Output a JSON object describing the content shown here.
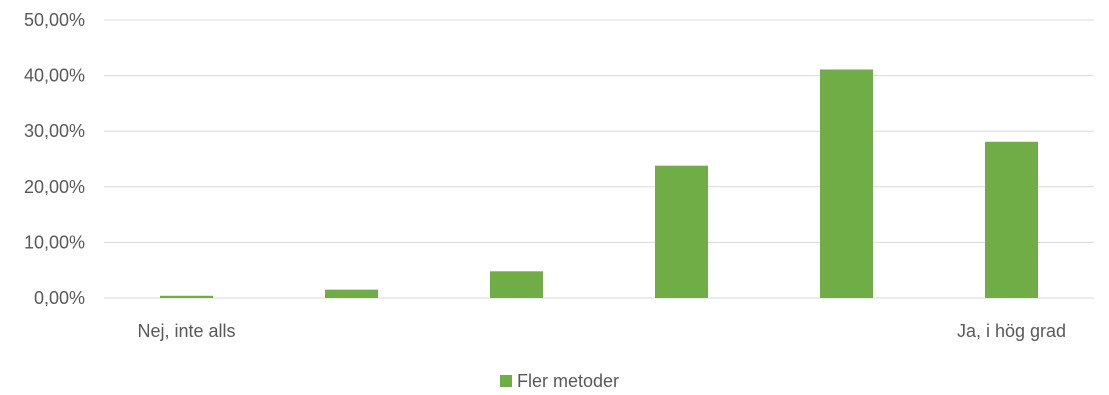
{
  "chart_data": {
    "type": "bar",
    "categories": [
      "Nej, inte alls",
      "",
      "",
      "",
      "",
      "Ja, i hög grad"
    ],
    "series": [
      {
        "name": "Fler metoder",
        "values": [
          0.4,
          1.5,
          4.8,
          23.8,
          41.1,
          28.1
        ],
        "color": "#70ad47"
      }
    ],
    "ylim": [
      0,
      50
    ],
    "yticks": [
      0,
      10,
      20,
      30,
      40,
      50
    ],
    "ytick_labels": [
      "0,00%",
      "10,00%",
      "20,00%",
      "30,00%",
      "40,00%",
      "50,00%"
    ],
    "grid": true,
    "legend_position": "bottom"
  }
}
